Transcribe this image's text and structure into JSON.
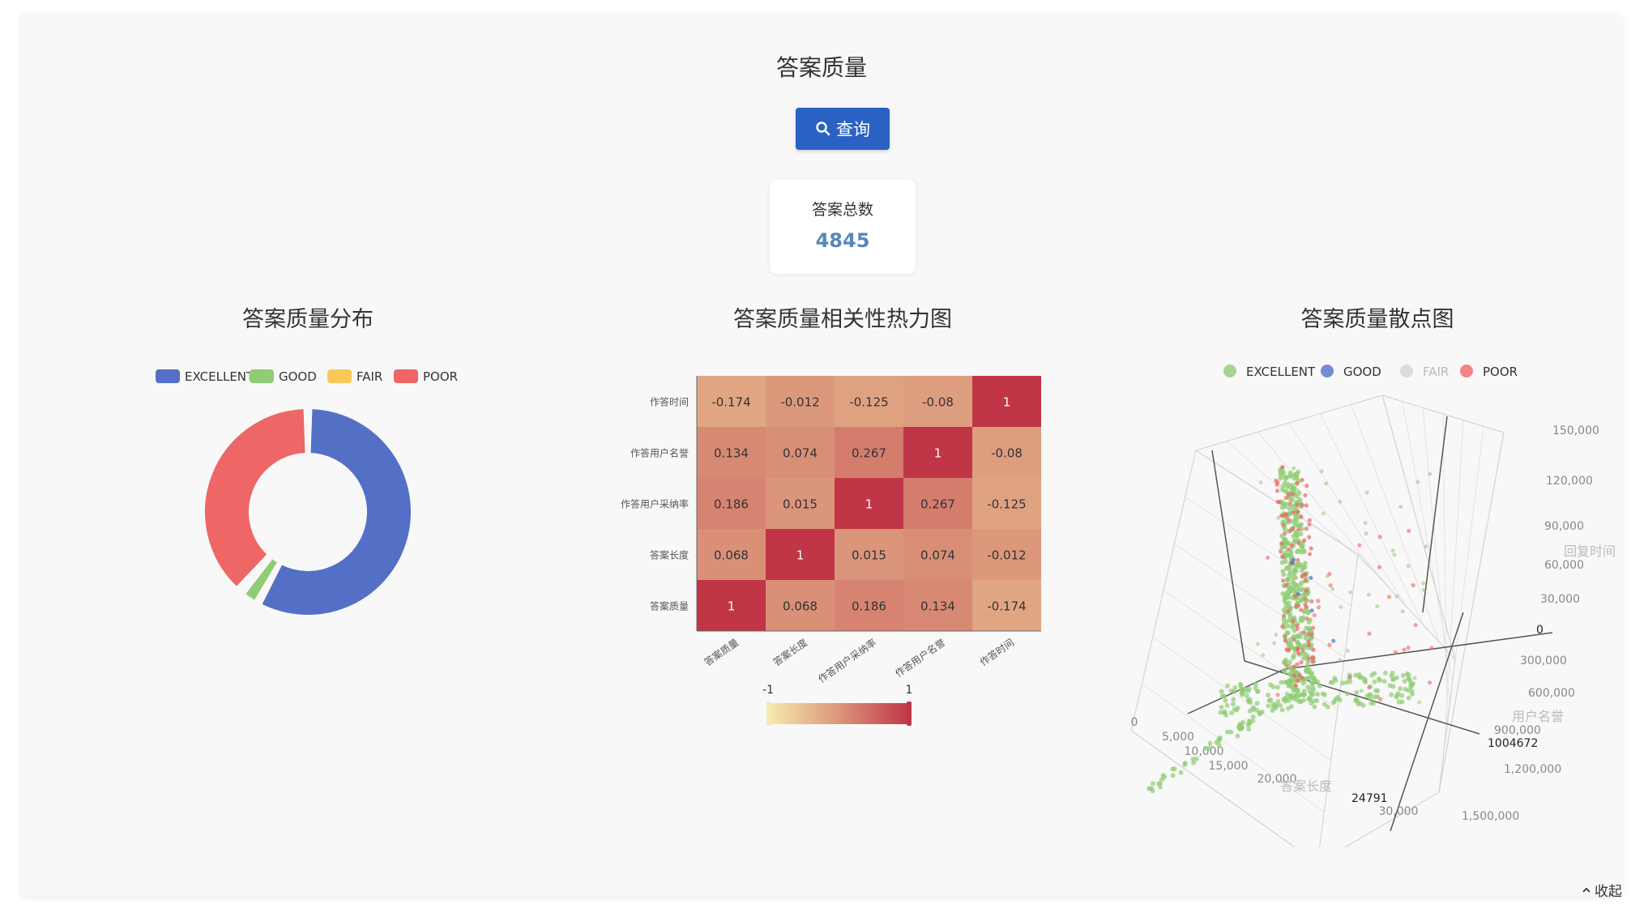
{
  "header": {
    "title": "答案质量",
    "query_label": "查询"
  },
  "stat": {
    "label": "答案总数",
    "value": "4845"
  },
  "footer": {
    "collapse_label": "收起"
  },
  "chart_data": [
    {
      "type": "pie",
      "title": "答案质量分布",
      "legend": [
        "EXCELLENT",
        "GOOD",
        "FAIR",
        "POOR"
      ],
      "values": [
        58,
        3,
        0.5,
        38.5
      ],
      "colors": [
        "#5470c6",
        "#91cc75",
        "#fac858",
        "#ee6666"
      ]
    },
    {
      "type": "heatmap",
      "title": "答案质量相关性热力图",
      "x_labels": [
        "答案质量",
        "答案长度",
        "作答用户采纳率",
        "作答用户名誉",
        "作答时间"
      ],
      "y_labels": [
        "作答时间",
        "作答用户名誉",
        "作答用户采纳率",
        "答案长度",
        "答案质量"
      ],
      "matrix": [
        [
          "-0.174",
          "-0.012",
          "-0.125",
          "-0.08",
          "1"
        ],
        [
          "0.134",
          "0.074",
          "0.267",
          "1",
          "-0.08"
        ],
        [
          "0.186",
          "0.015",
          "1",
          "0.267",
          "-0.125"
        ],
        [
          "0.068",
          "1",
          "0.015",
          "0.074",
          "-0.012"
        ],
        [
          "1",
          "0.068",
          "0.186",
          "0.134",
          "-0.174"
        ]
      ],
      "visual_map": {
        "min": "-1",
        "max": "1"
      }
    },
    {
      "type": "scatter",
      "title": "答案质量散点图",
      "legend": [
        "EXCELLENT",
        "GOOD",
        "FAIR",
        "POOR"
      ],
      "colors": [
        "#91cc75",
        "#5470c6",
        "#c8c8c8",
        "#ee6666"
      ],
      "axes": {
        "x": {
          "name": "答案长度",
          "ticks": [
            "0",
            "5,000",
            "10,000",
            "15,000",
            "20,000",
            "30,000"
          ],
          "max_label": "24791"
        },
        "y": {
          "name": "用户名誉",
          "ticks": [
            "0",
            "300,000",
            "600,000",
            "900,000",
            "1,200,000",
            "1,500,000"
          ],
          "max_label": "1004672"
        },
        "z": {
          "name": "回复时间",
          "ticks": [
            "0",
            "30,000",
            "60,000",
            "90,000",
            "120,000",
            "150,000"
          ]
        }
      }
    }
  ]
}
